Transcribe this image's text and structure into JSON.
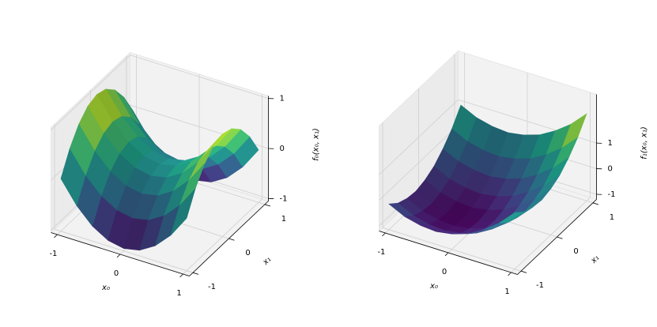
{
  "chart_data": [
    {
      "type": "surface",
      "xlabel": "x₀",
      "ylabel": "x₁",
      "zlabel": "f₀(x₀, x₁)",
      "cmap": "viridis",
      "x": [
        -1,
        -0.75,
        -0.5,
        -0.25,
        0,
        0.25,
        0.5,
        0.75,
        1
      ],
      "y": [
        -1,
        -0.75,
        -0.5,
        -0.25,
        0,
        0.25,
        0.5,
        0.75,
        1
      ],
      "z": [
        [
          0,
          -0.4375,
          -0.75,
          -0.9375,
          -1,
          -0.9375,
          -0.75,
          -0.4375,
          0
        ],
        [
          0.4375,
          0,
          -0.3125,
          -0.5,
          -0.5625,
          -0.5,
          -0.3125,
          0,
          0.4375
        ],
        [
          0.75,
          0.3125,
          0,
          -0.1875,
          -0.25,
          -0.1875,
          0,
          0.3125,
          0.75
        ],
        [
          0.9375,
          0.5,
          0.1875,
          0,
          -0.0625,
          0,
          0.1875,
          0.5,
          0.9375
        ],
        [
          1,
          0.5625,
          0.25,
          0.0625,
          0,
          0.0625,
          0.25,
          0.5625,
          1
        ],
        [
          0.9375,
          0.5,
          0.1875,
          0,
          -0.0625,
          0,
          0.1875,
          0.5,
          0.9375
        ],
        [
          0.75,
          0.3125,
          0,
          -0.1875,
          -0.25,
          -0.1875,
          0,
          0.3125,
          0.75
        ],
        [
          0.4375,
          0,
          -0.3125,
          -0.5,
          -0.5625,
          -0.5,
          -0.3125,
          0,
          0.4375
        ],
        [
          0,
          -0.4375,
          -0.75,
          -0.9375,
          -1,
          -0.9375,
          -0.75,
          -0.4375,
          0
        ]
      ],
      "xlim": [
        -1.1,
        1.1
      ],
      "ylim": [
        -1.1,
        1.1
      ],
      "zlim": [
        -1.05,
        1.05
      ],
      "xticks": [
        -1,
        0,
        1
      ],
      "yticks": [
        -1,
        0,
        1
      ],
      "zticks": [
        -1,
        0,
        1
      ],
      "grid": true
    },
    {
      "type": "surface",
      "xlabel": "x₀",
      "ylabel": "x₁",
      "zlabel": "f₁(x₀, x₁)",
      "cmap": "viridis",
      "x": [
        -1,
        -0.75,
        -0.5,
        -0.25,
        0,
        0.25,
        0.5,
        0.75,
        1
      ],
      "y": [
        -1,
        -0.75,
        -0.5,
        -0.25,
        0,
        0.25,
        0.5,
        0.75,
        1
      ],
      "z": [
        [
          -0.2,
          -0.5,
          -0.65,
          -0.7,
          -0.6,
          -0.4,
          -0.05,
          0.4,
          1
        ],
        [
          -0.5,
          -0.8,
          -0.95,
          -1,
          -0.9,
          -0.7,
          -0.35,
          0.1,
          0.7
        ],
        [
          -0.65,
          -0.95,
          -1.1,
          -1.15,
          -1.05,
          -0.85,
          -0.5,
          -0.05,
          0.55
        ],
        [
          -0.7,
          -1,
          -1.15,
          -1.2,
          -1.1,
          -0.9,
          -0.55,
          -0.1,
          0.5
        ],
        [
          -0.6,
          -0.9,
          -1.05,
          -1.1,
          -1,
          -0.8,
          -0.45,
          0,
          0.6
        ],
        [
          -0.4,
          -0.7,
          -0.85,
          -0.9,
          -0.8,
          -0.6,
          -0.25,
          0.2,
          0.8
        ],
        [
          -0.05,
          -0.35,
          -0.5,
          -0.55,
          -0.45,
          -0.25,
          0.1,
          0.55,
          1.15
        ],
        [
          0.4,
          0.1,
          -0.05,
          -0.1,
          0,
          0.2,
          0.55,
          1,
          1.6
        ],
        [
          1,
          0.7,
          0.55,
          0.5,
          0.6,
          0.8,
          1.15,
          1.6,
          2.2
        ]
      ],
      "xlim": [
        -1.1,
        1.1
      ],
      "ylim": [
        -1.1,
        1.1
      ],
      "zlim": [
        -1.2,
        2.9
      ],
      "xticks": [
        -1,
        0,
        1
      ],
      "yticks": [
        -1,
        0,
        1
      ],
      "zticks": [
        -1,
        0,
        1
      ],
      "grid": true
    }
  ]
}
